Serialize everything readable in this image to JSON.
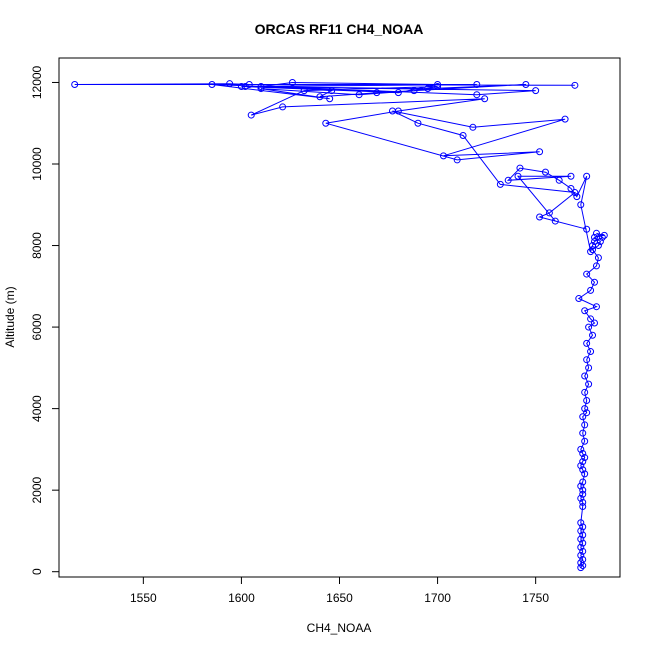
{
  "chart_data": {
    "type": "line",
    "title": "ORCAS RF11 CH4_NOAA",
    "xlabel": "CH4_NOAA",
    "ylabel": "Altitude (m)",
    "xlim": [
      1507,
      1793
    ],
    "ylim": [
      -130,
      12600
    ],
    "xticks": [
      1550,
      1600,
      1650,
      1700,
      1750
    ],
    "yticks": [
      0,
      2000,
      4000,
      6000,
      8000,
      10000,
      12000
    ],
    "grid": false,
    "series_color": "#0000ff",
    "marker": "open-circle",
    "series": [
      {
        "x": [
          1773,
          1774,
          1773,
          1774,
          1773,
          1774,
          1773,
          1774,
          1773,
          1774,
          1773,
          1774,
          1773,
          1774,
          1774,
          1773,
          1774,
          1774,
          1773,
          1774,
          1775,
          1774,
          1773,
          1774,
          1775,
          1774,
          1773,
          1775,
          1774,
          1775,
          1774,
          1776,
          1775,
          1776,
          1775,
          1777,
          1775,
          1777,
          1776,
          1778,
          1776,
          1779,
          1777,
          1780,
          1778,
          1775,
          1781,
          1772,
          1778,
          1780,
          1776,
          1781,
          1782,
          1779,
          1782,
          1783,
          1780,
          1785,
          1781,
          1784,
          1780,
          1779,
          1778,
          1773,
          1776,
          1771,
          1768,
          1762,
          1755,
          1742,
          1736,
          1768,
          1741,
          1760,
          1776,
          1752,
          1757,
          1770,
          1732,
          1713,
          1690,
          1677,
          1718,
          1765,
          1703,
          1752,
          1710,
          1643,
          1680,
          1724,
          1621,
          1605,
          1632,
          1700,
          1688,
          1660,
          1610,
          1645,
          1585,
          1720,
          1750,
          1600,
          1680,
          1700,
          1626,
          1610,
          1646,
          1640,
          1669,
          1745,
          1695,
          1602,
          1720,
          1515,
          1594,
          1604,
          1770
        ],
        "y": [
          100,
          150,
          220,
          300,
          400,
          500,
          600,
          700,
          800,
          900,
          1000,
          1100,
          1200,
          1600,
          1700,
          1800,
          1900,
          2000,
          2100,
          2200,
          2400,
          2500,
          2600,
          2700,
          2800,
          2900,
          3000,
          3200,
          3400,
          3600,
          3800,
          3900,
          4000,
          4200,
          4400,
          4600,
          4800,
          5000,
          5200,
          5400,
          5600,
          5800,
          6000,
          6100,
          6200,
          6400,
          6500,
          6700,
          6900,
          7100,
          7300,
          7500,
          7700,
          7900,
          8000,
          8100,
          8200,
          8250,
          8300,
          8200,
          8100,
          8000,
          7850,
          9000,
          9700,
          9200,
          9400,
          9600,
          9800,
          9900,
          9600,
          9700,
          9700,
          8600,
          8400,
          8700,
          8800,
          9300,
          9500,
          10700,
          11000,
          11300,
          10900,
          11100,
          10200,
          10300,
          10100,
          11000,
          11300,
          11600,
          11400,
          11200,
          11800,
          11900,
          11800,
          11700,
          11850,
          11600,
          11950,
          11700,
          11800,
          11900,
          11750,
          11950,
          12000,
          11900,
          11800,
          11650,
          11750,
          11950,
          11850,
          11900,
          11950,
          11950,
          11970,
          11950,
          11930
        ]
      }
    ]
  }
}
